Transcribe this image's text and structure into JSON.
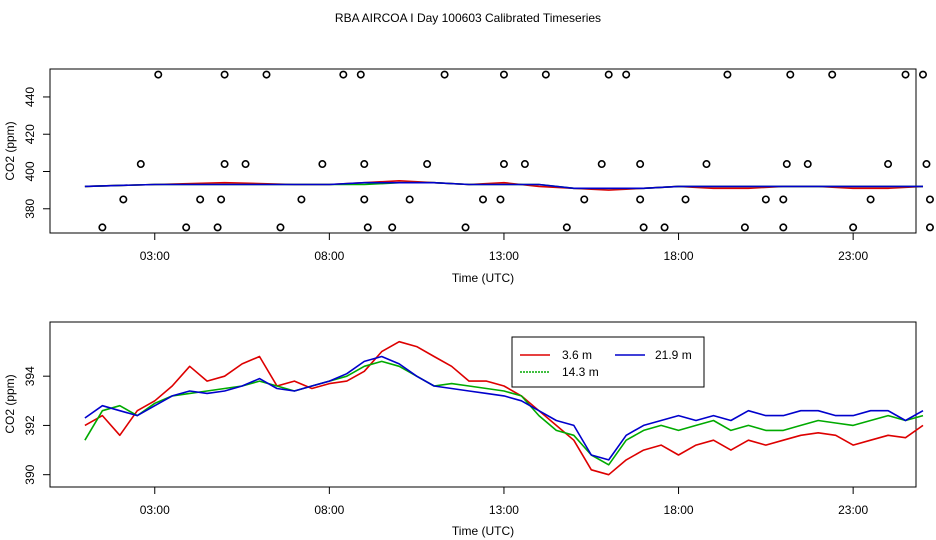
{
  "figure": {
    "title": "RBA AIRCOA I  Day 100603  Calibrated Timeseries"
  },
  "chart_data": [
    {
      "type": "scatter",
      "xlabel": "Time (UTC)",
      "ylabel": "CO2 (ppm)",
      "xlim": [
        0.0,
        24.8
      ],
      "ylim": [
        367,
        455
      ],
      "xticks": [
        3,
        8,
        13,
        18,
        23
      ],
      "xtick_labels": [
        "03:00",
        "08:00",
        "13:00",
        "18:00",
        "23:00"
      ],
      "yticks": [
        380,
        400,
        420,
        440
      ],
      "ytick_labels": [
        "380",
        "400",
        "420",
        "440"
      ],
      "scatter_series": {
        "marker": "open-circle",
        "color": "#000000",
        "points": [
          {
            "x": 1.5,
            "y": 370
          },
          {
            "x": 2.1,
            "y": 385
          },
          {
            "x": 2.6,
            "y": 404
          },
          {
            "x": 3.1,
            "y": 452
          },
          {
            "x": 3.9,
            "y": 370
          },
          {
            "x": 4.3,
            "y": 385
          },
          {
            "x": 4.8,
            "y": 370
          },
          {
            "x": 4.9,
            "y": 385
          },
          {
            "x": 5.0,
            "y": 404
          },
          {
            "x": 5.0,
            "y": 452
          },
          {
            "x": 5.6,
            "y": 404
          },
          {
            "x": 6.2,
            "y": 452
          },
          {
            "x": 6.6,
            "y": 370
          },
          {
            "x": 7.2,
            "y": 385
          },
          {
            "x": 7.8,
            "y": 404
          },
          {
            "x": 8.4,
            "y": 452
          },
          {
            "x": 8.9,
            "y": 452
          },
          {
            "x": 9.0,
            "y": 404
          },
          {
            "x": 9.0,
            "y": 385
          },
          {
            "x": 9.1,
            "y": 370
          },
          {
            "x": 9.8,
            "y": 370
          },
          {
            "x": 10.3,
            "y": 385
          },
          {
            "x": 10.8,
            "y": 404
          },
          {
            "x": 11.3,
            "y": 452
          },
          {
            "x": 11.9,
            "y": 370
          },
          {
            "x": 12.4,
            "y": 385
          },
          {
            "x": 12.9,
            "y": 385
          },
          {
            "x": 13.0,
            "y": 404
          },
          {
            "x": 13.0,
            "y": 452
          },
          {
            "x": 13.6,
            "y": 404
          },
          {
            "x": 14.2,
            "y": 452
          },
          {
            "x": 14.8,
            "y": 370
          },
          {
            "x": 15.3,
            "y": 385
          },
          {
            "x": 15.8,
            "y": 404
          },
          {
            "x": 16.0,
            "y": 452
          },
          {
            "x": 16.5,
            "y": 452
          },
          {
            "x": 16.9,
            "y": 385
          },
          {
            "x": 16.9,
            "y": 404
          },
          {
            "x": 17.0,
            "y": 370
          },
          {
            "x": 17.6,
            "y": 370
          },
          {
            "x": 18.2,
            "y": 385
          },
          {
            "x": 18.8,
            "y": 404
          },
          {
            "x": 19.4,
            "y": 452
          },
          {
            "x": 19.9,
            "y": 370
          },
          {
            "x": 20.5,
            "y": 385
          },
          {
            "x": 21.0,
            "y": 385
          },
          {
            "x": 21.0,
            "y": 370
          },
          {
            "x": 21.1,
            "y": 404
          },
          {
            "x": 21.2,
            "y": 452
          },
          {
            "x": 21.7,
            "y": 404
          },
          {
            "x": 22.4,
            "y": 452
          },
          {
            "x": 23.0,
            "y": 370
          },
          {
            "x": 23.5,
            "y": 385
          },
          {
            "x": 24.0,
            "y": 404
          },
          {
            "x": 24.5,
            "y": 452
          },
          {
            "x": 25.0,
            "y": 452
          },
          {
            "x": 25.1,
            "y": 404
          },
          {
            "x": 25.2,
            "y": 385
          },
          {
            "x": 25.2,
            "y": 370
          }
        ]
      },
      "line_series": [
        {
          "name": "3.6 m",
          "color": "#dd0000",
          "x": [
            1.0,
            3.0,
            5.0,
            7.0,
            8.0,
            9.0,
            10.0,
            11.0,
            12.0,
            13.0,
            14.0,
            15.0,
            16.0,
            17.0,
            18.0,
            19.0,
            20.0,
            21.0,
            22.0,
            23.0,
            24.0,
            25.0
          ],
          "y": [
            392,
            393,
            394,
            393,
            393,
            394,
            395,
            394,
            393,
            394,
            392,
            391,
            390,
            391,
            392,
            391,
            391,
            392,
            392,
            391,
            391,
            392
          ]
        },
        {
          "name": "14.3 m",
          "color": "#00aa00",
          "x": [
            1.0,
            3.0,
            5.0,
            7.0,
            8.0,
            9.0,
            10.0,
            11.0,
            12.0,
            13.0,
            14.0,
            15.0,
            16.0,
            17.0,
            18.0,
            19.0,
            20.0,
            21.0,
            22.0,
            23.0,
            24.0,
            25.0
          ],
          "y": [
            392,
            393,
            393,
            393,
            393,
            393,
            394,
            394,
            393,
            393,
            393,
            391,
            391,
            391,
            392,
            392,
            392,
            392,
            392,
            392,
            392,
            392
          ]
        },
        {
          "name": "21.9 m",
          "color": "#0000cc",
          "x": [
            1.0,
            3.0,
            5.0,
            7.0,
            8.0,
            9.0,
            10.0,
            11.0,
            12.0,
            13.0,
            14.0,
            15.0,
            16.0,
            17.0,
            18.0,
            19.0,
            20.0,
            21.0,
            22.0,
            23.0,
            24.0,
            25.0
          ],
          "y": [
            392,
            393,
            393,
            393,
            393,
            394,
            394,
            394,
            393,
            393,
            393,
            391,
            391,
            391,
            392,
            392,
            392,
            392,
            392,
            392,
            392,
            392
          ]
        }
      ]
    },
    {
      "type": "line",
      "xlabel": "Time (UTC)",
      "ylabel": "CO2 (ppm)",
      "xlim": [
        0.0,
        24.8
      ],
      "ylim": [
        389.5,
        396.2
      ],
      "xticks": [
        3,
        8,
        13,
        18,
        23
      ],
      "xtick_labels": [
        "03:00",
        "08:00",
        "13:00",
        "18:00",
        "23:00"
      ],
      "yticks": [
        390,
        392,
        394
      ],
      "ytick_labels": [
        "390",
        "392",
        "394"
      ],
      "legend": {
        "position": "top-center",
        "columns": 2
      },
      "x": [
        1.0,
        1.5,
        2.0,
        2.5,
        3.0,
        3.5,
        4.0,
        4.5,
        5.0,
        5.5,
        6.0,
        6.5,
        7.0,
        7.5,
        8.0,
        8.5,
        9.0,
        9.5,
        10.0,
        10.5,
        11.0,
        11.5,
        12.0,
        12.5,
        13.0,
        13.5,
        14.0,
        14.5,
        15.0,
        15.5,
        16.0,
        16.5,
        17.0,
        17.5,
        18.0,
        18.5,
        19.0,
        19.5,
        20.0,
        20.5,
        21.0,
        21.5,
        22.0,
        22.5,
        23.0,
        23.5,
        24.0,
        24.5,
        25.0
      ],
      "series": [
        {
          "name": "3.6 m",
          "color": "#dd0000",
          "values": [
            392.0,
            392.4,
            391.6,
            392.6,
            393.0,
            393.6,
            394.4,
            393.8,
            394.0,
            394.5,
            394.8,
            393.6,
            393.8,
            393.5,
            393.7,
            393.8,
            394.2,
            395.0,
            395.4,
            395.2,
            394.8,
            394.4,
            393.8,
            393.8,
            393.6,
            393.2,
            392.6,
            392.0,
            391.4,
            390.2,
            390.0,
            390.6,
            391.0,
            391.2,
            390.8,
            391.2,
            391.4,
            391.0,
            391.4,
            391.2,
            391.4,
            391.6,
            391.7,
            391.6,
            391.2,
            391.4,
            391.6,
            391.5,
            392.0
          ],
          "y": [
            392.0,
            392.4,
            391.6,
            392.6,
            393.0,
            393.6,
            394.4,
            393.8,
            394.0,
            394.5,
            394.8,
            393.6,
            393.8,
            393.5,
            393.7,
            393.8,
            394.2,
            395.0,
            395.4,
            395.2,
            394.8,
            394.4,
            393.8,
            393.8,
            393.6,
            393.2,
            392.6,
            392.0,
            391.4,
            390.2,
            390.0,
            390.6,
            391.0,
            391.2,
            390.8,
            391.2,
            391.4,
            391.0,
            391.4,
            391.2,
            391.4,
            391.6,
            391.7,
            391.6,
            391.2,
            391.4,
            391.6,
            391.5,
            392.0
          ]
        },
        {
          "name": "14.3 m",
          "color": "#00aa00",
          "values": [
            391.4,
            392.6,
            392.8,
            392.4,
            392.9,
            393.2,
            393.3,
            393.4,
            393.5,
            393.6,
            393.8,
            393.6,
            393.4,
            393.6,
            393.8,
            394.0,
            394.4,
            394.6,
            394.4,
            394.0,
            393.6,
            393.7,
            393.6,
            393.5,
            393.4,
            393.2,
            392.4,
            391.8,
            391.6,
            390.8,
            390.4,
            391.4,
            391.8,
            392.0,
            391.8,
            392.0,
            392.2,
            391.8,
            392.0,
            391.8,
            391.8,
            392.0,
            392.2,
            392.1,
            392.0,
            392.2,
            392.4,
            392.2,
            392.4
          ],
          "y": [
            391.4,
            392.6,
            392.8,
            392.4,
            392.9,
            393.2,
            393.3,
            393.4,
            393.5,
            393.6,
            393.8,
            393.6,
            393.4,
            393.6,
            393.8,
            394.0,
            394.4,
            394.6,
            394.4,
            394.0,
            393.6,
            393.7,
            393.6,
            393.5,
            393.4,
            393.2,
            392.4,
            391.8,
            391.6,
            390.8,
            390.4,
            391.4,
            391.8,
            392.0,
            391.8,
            392.0,
            392.2,
            391.8,
            392.0,
            391.8,
            391.8,
            392.0,
            392.2,
            392.1,
            392.0,
            392.2,
            392.4,
            392.2,
            392.4
          ]
        },
        {
          "name": "21.9 m",
          "color": "#0000cc",
          "values": [
            392.3,
            392.8,
            392.6,
            392.4,
            392.8,
            393.2,
            393.4,
            393.3,
            393.4,
            393.6,
            393.9,
            393.5,
            393.4,
            393.6,
            393.8,
            394.1,
            394.6,
            394.8,
            394.5,
            394.0,
            393.6,
            393.5,
            393.4,
            393.3,
            393.2,
            393.0,
            392.6,
            392.2,
            392.0,
            390.8,
            390.6,
            391.6,
            392.0,
            392.2,
            392.4,
            392.2,
            392.4,
            392.2,
            392.6,
            392.4,
            392.4,
            392.6,
            392.6,
            392.4,
            392.4,
            392.6,
            392.6,
            392.2,
            392.6
          ],
          "y": [
            392.3,
            392.8,
            392.6,
            392.4,
            392.8,
            393.2,
            393.4,
            393.3,
            393.4,
            393.6,
            393.9,
            393.5,
            393.4,
            393.6,
            393.8,
            394.1,
            394.6,
            394.8,
            394.5,
            394.0,
            393.6,
            393.5,
            393.4,
            393.3,
            393.2,
            393.0,
            392.6,
            392.2,
            392.0,
            390.8,
            390.6,
            391.6,
            392.0,
            392.2,
            392.4,
            392.2,
            392.4,
            392.2,
            392.6,
            392.4,
            392.4,
            392.6,
            392.6,
            392.4,
            392.4,
            392.6,
            392.6,
            392.2,
            392.6
          ]
        }
      ]
    }
  ]
}
